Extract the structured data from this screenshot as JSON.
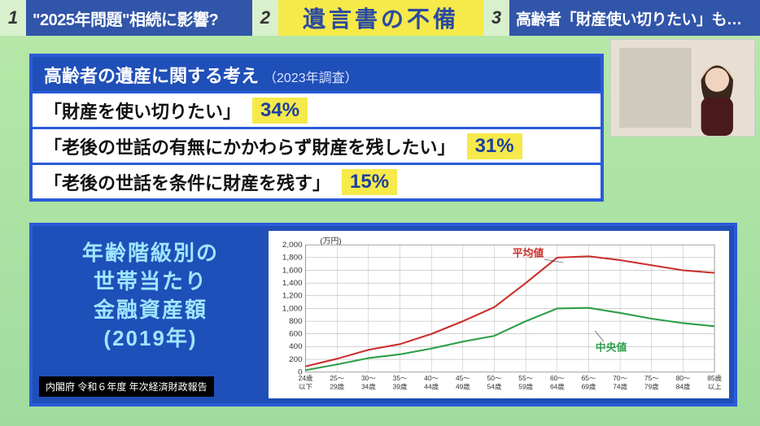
{
  "topbar": {
    "tab1": {
      "num": "1",
      "text": "\"2025年問題\"相続に影響?"
    },
    "tab2": {
      "num": "2",
      "text": "遺言書の不備"
    },
    "tab3": {
      "num": "3",
      "text": "高齢者「財産使い切りたい」も…"
    }
  },
  "survey": {
    "header_main": "高齢者の遺産に関する考え",
    "header_sub": "（2023年調査）",
    "rows": [
      {
        "label": "「財産を使い切りたい」",
        "pct": "34%"
      },
      {
        "label": "「老後の世話の有無にかかわらず財産を残したい」",
        "pct": "31%"
      },
      {
        "label": "「老後の世話を条件に財産を残す」",
        "pct": "15%"
      }
    ]
  },
  "lower": {
    "title_line1": "年齢階級別の",
    "title_line2": "世帯当たり",
    "title_line3": "金融資産額",
    "title_line4": "(2019年)",
    "citation": "内閣府 令和６年度 年次経済財政報告"
  },
  "chart": {
    "type": "line",
    "y_unit_label": "(万円)",
    "ylim": [
      0,
      2000
    ],
    "ytick_step": 200,
    "yticks": [
      0,
      200,
      400,
      600,
      800,
      1000,
      1200,
      1400,
      1600,
      1800,
      2000
    ],
    "categories_top": [
      "24歳",
      "25〜",
      "30〜",
      "35〜",
      "40〜",
      "45〜",
      "50〜",
      "55〜",
      "60〜",
      "65〜",
      "70〜",
      "75〜",
      "80〜",
      "85歳"
    ],
    "categories_bottom": [
      "以下",
      "29歳",
      "34歳",
      "39歳",
      "44歳",
      "49歳",
      "54歳",
      "59歳",
      "64歳",
      "69歳",
      "74歳",
      "79歳",
      "84歳",
      "以上"
    ],
    "series": {
      "mean": {
        "label": "平均値",
        "color": "#c9302c",
        "values": [
          90,
          210,
          350,
          440,
          600,
          800,
          1020,
          1400,
          1800,
          1820,
          1760,
          1680,
          1600,
          1560
        ]
      },
      "median": {
        "label": "中央値",
        "color": "#2f9f4a",
        "values": [
          30,
          120,
          220,
          280,
          370,
          480,
          570,
          800,
          1000,
          1010,
          930,
          840,
          770,
          720
        ]
      }
    },
    "grid_color": "#888888",
    "background_color": "#ffffff",
    "axis_fontsize": 10,
    "label_fontsize": 13,
    "line_width": 2.2,
    "annotation_mean": {
      "x_index": 8.2,
      "y_value": 1720
    },
    "annotation_median": {
      "x_index": 9.2,
      "y_value": 650
    }
  },
  "colors": {
    "page_bg_top": "#b8e8a8",
    "page_bg_bottom": "#a0dca0",
    "brand_blue": "#1f4fb8",
    "border_blue": "#2a5bd8",
    "highlight_yellow": "#f6e94a",
    "title_cyan": "#9fe6ff"
  }
}
